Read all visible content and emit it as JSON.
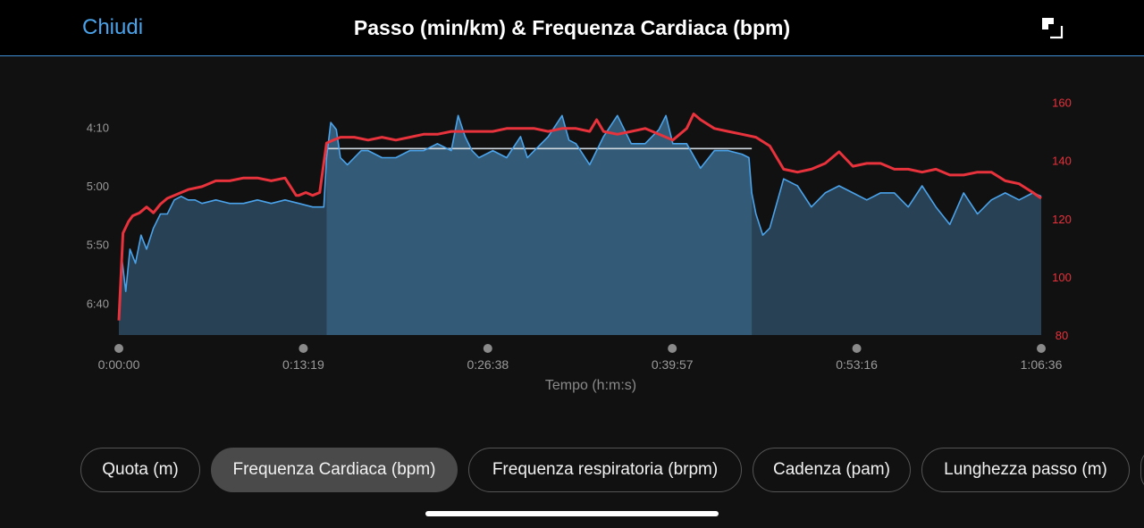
{
  "header": {
    "close_label": "Chiudi",
    "title": "Passo (min/km) & Frequenza Cardiaca (bpm)",
    "expand_icon": "expand-icon"
  },
  "chart_data": {
    "type": "line",
    "title": "Passo (min/km) & Frequenza Cardiaca (bpm)",
    "xlabel": "Tempo (h:m:s)",
    "x_ticks": [
      "0:00:00",
      "0:13:19",
      "0:26:38",
      "0:39:57",
      "0:53:16",
      "1:06:36"
    ],
    "x_range_minutes": [
      0,
      66.6
    ],
    "y_left": {
      "label": "Passo (min/km)",
      "ticks": [
        "4:10",
        "5:00",
        "5:50",
        "6:40"
      ],
      "range_minutes": [
        3.73,
        7.12
      ],
      "inverted": true
    },
    "y_right": {
      "label": "Frequenza Cardiaca (bpm)",
      "ticks": [
        "160",
        "140",
        "120",
        "100",
        "80"
      ],
      "range": [
        80,
        162
      ]
    },
    "colors": {
      "pace": "#4aa3ea",
      "pace_fill": "#2e4a60",
      "heart_rate": "#e8323c"
    },
    "highlight_segment": {
      "start_min": 15.0,
      "end_min": 45.7,
      "target_pace_min": 4.47
    },
    "series": [
      {
        "name": "Passo (min/km)",
        "axis": "left",
        "x": [
          0,
          0.2,
          0.5,
          0.8,
          1.2,
          1.6,
          2.0,
          2.5,
          3.0,
          3.5,
          4.0,
          4.5,
          5.0,
          5.5,
          6.0,
          7.0,
          8.0,
          9.0,
          10.0,
          11.0,
          12.0,
          13.0,
          14.0,
          14.8,
          15.0,
          15.3,
          15.7,
          16.0,
          16.5,
          17.0,
          17.5,
          18.0,
          19.0,
          20.0,
          21.0,
          22.0,
          23.0,
          24.0,
          24.5,
          25.0,
          25.5,
          26.0,
          27.0,
          28.0,
          29.0,
          29.5,
          30.0,
          31.0,
          32.0,
          32.5,
          33.0,
          34.0,
          35.0,
          36.0,
          37.0,
          38.0,
          39.0,
          39.5,
          40.0,
          41.0,
          42.0,
          43.0,
          44.0,
          45.0,
          45.5,
          45.7,
          46.0,
          46.5,
          47.0,
          48.0,
          49.0,
          50.0,
          51.0,
          52.0,
          53.0,
          54.0,
          55.0,
          56.0,
          57.0,
          58.0,
          59.0,
          60.0,
          61.0,
          62.0,
          63.0,
          64.0,
          65.0,
          66.0,
          66.6
        ],
        "y": [
          6.9,
          6.0,
          6.5,
          5.9,
          6.1,
          5.7,
          5.9,
          5.6,
          5.4,
          5.4,
          5.2,
          5.15,
          5.2,
          5.2,
          5.25,
          5.2,
          5.25,
          5.25,
          5.2,
          5.25,
          5.2,
          5.25,
          5.3,
          5.3,
          4.6,
          4.1,
          4.2,
          4.6,
          4.7,
          4.6,
          4.5,
          4.5,
          4.6,
          4.6,
          4.5,
          4.5,
          4.4,
          4.5,
          4.0,
          4.3,
          4.5,
          4.6,
          4.5,
          4.6,
          4.3,
          4.6,
          4.5,
          4.3,
          4.0,
          4.35,
          4.4,
          4.7,
          4.3,
          4.0,
          4.4,
          4.4,
          4.2,
          4.0,
          4.4,
          4.4,
          4.75,
          4.5,
          4.5,
          4.55,
          4.6,
          5.1,
          5.4,
          5.7,
          5.6,
          4.9,
          5.0,
          5.3,
          5.1,
          5.0,
          5.1,
          5.2,
          5.1,
          5.1,
          5.3,
          5.0,
          5.3,
          5.55,
          5.1,
          5.4,
          5.2,
          5.1,
          5.2,
          5.1,
          5.15
        ]
      },
      {
        "name": "Frequenza Cardiaca (bpm)",
        "axis": "right",
        "x": [
          0,
          0.3,
          0.7,
          1.0,
          1.5,
          2.0,
          2.5,
          3.0,
          3.5,
          4.0,
          4.5,
          5.0,
          6.0,
          7.0,
          8.0,
          9.0,
          10.0,
          11.0,
          12.0,
          12.8,
          13.0,
          13.5,
          14.0,
          14.5,
          15.0,
          15.5,
          16.0,
          17.0,
          18.0,
          19.0,
          20.0,
          21.0,
          22.0,
          23.0,
          24.0,
          25.0,
          26.0,
          27.0,
          28.0,
          29.0,
          30.0,
          31.0,
          32.0,
          33.0,
          34.0,
          34.5,
          35.0,
          36.0,
          37.0,
          38.0,
          39.0,
          40.0,
          41.0,
          41.5,
          42.0,
          43.0,
          44.0,
          45.0,
          46.0,
          47.0,
          48.0,
          49.0,
          50.0,
          51.0,
          52.0,
          53.0,
          54.0,
          55.0,
          56.0,
          57.0,
          58.0,
          59.0,
          60.0,
          61.0,
          62.0,
          63.0,
          64.0,
          65.0,
          66.0,
          66.6
        ],
        "y": [
          85,
          115,
          119,
          121,
          122,
          124,
          122,
          125,
          127,
          128,
          129,
          130,
          131,
          133,
          133,
          134,
          134,
          133,
          134,
          128,
          128,
          129,
          128,
          129,
          146,
          147,
          148,
          148,
          147,
          148,
          147,
          148,
          149,
          149,
          150,
          150,
          150,
          150,
          151,
          151,
          151,
          150,
          151,
          151,
          150,
          154,
          150,
          149,
          150,
          151,
          149,
          147,
          151,
          156,
          154,
          151,
          150,
          149,
          148,
          145,
          137,
          136,
          137,
          139,
          143,
          138,
          139,
          139,
          137,
          137,
          136,
          137,
          135,
          135,
          136,
          136,
          133,
          132,
          129,
          127
        ]
      }
    ]
  },
  "chips": [
    {
      "label": "Quota (m)",
      "active": false
    },
    {
      "label": "Frequenza Cardiaca (bpm)",
      "active": true
    },
    {
      "label": "Frequenza respiratoria (brpm)",
      "active": false
    },
    {
      "label": "Cadenza (pam)",
      "active": false
    },
    {
      "label": "Lunghezza passo (m)",
      "active": false
    }
  ]
}
